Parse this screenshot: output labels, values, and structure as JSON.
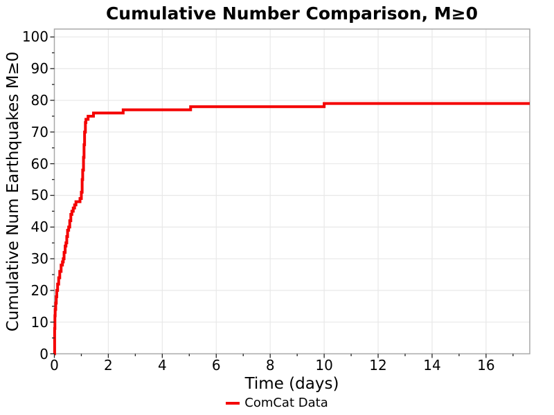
{
  "title": "Cumulative Number Comparison, M≥0",
  "axes": {
    "x_label": "Time (days)",
    "y_label": "Cumulative Num Earthquakes M≥0"
  },
  "legend": {
    "position": "bottom",
    "items": [
      {
        "label": "ComCat Data",
        "color": "#f40000"
      }
    ]
  },
  "chart_data": {
    "type": "line",
    "style": "step-post",
    "title": "Cumulative Number Comparison, M≥0",
    "xlabel": "Time (days)",
    "ylabel": "Cumulative Num Earthquakes M≥0",
    "xlim": [
      0,
      17.62
    ],
    "ylim": [
      0,
      102.5
    ],
    "grid": "major",
    "grid_color": "#e8e8e8",
    "panel_border_color": "#a8a8a8",
    "tick_color": "#222222",
    "x_major_ticks": [
      0,
      2,
      4,
      6,
      8,
      10,
      12,
      14,
      16
    ],
    "x_minor_ticks": [
      1,
      3,
      5,
      7,
      9,
      11,
      13,
      15,
      17
    ],
    "y_major_ticks": [
      0,
      10,
      20,
      30,
      40,
      50,
      60,
      70,
      80,
      90,
      100
    ],
    "y_minor_ticks": [
      5,
      15,
      25,
      35,
      45,
      55,
      65,
      75,
      85,
      95
    ],
    "legend_position": "bottom",
    "series": [
      {
        "name": "ComCat Data",
        "color": "#f40000",
        "line_width": 4,
        "x": [
          0,
          0.01,
          0.02,
          0.03,
          0.05,
          0.07,
          0.09,
          0.12,
          0.16,
          0.2,
          0.25,
          0.3,
          0.33,
          0.36,
          0.4,
          0.43,
          0.46,
          0.49,
          0.53,
          0.57,
          0.61,
          0.65,
          0.7,
          0.75,
          0.8,
          0.95,
          1.0,
          1.03,
          1.05,
          1.08,
          1.1,
          1.12,
          1.15,
          1.17,
          1.25,
          1.45,
          2.55,
          5.05,
          10.0,
          17.62
        ],
        "y": [
          0,
          8,
          12,
          14,
          16,
          18,
          20,
          22,
          24,
          26,
          28,
          29,
          30,
          32,
          34,
          35,
          37,
          39,
          40,
          42,
          44,
          45,
          46,
          47,
          48,
          49,
          51,
          55,
          58,
          62,
          66,
          70,
          73,
          74,
          75,
          76,
          77,
          78,
          79,
          79
        ]
      }
    ]
  }
}
